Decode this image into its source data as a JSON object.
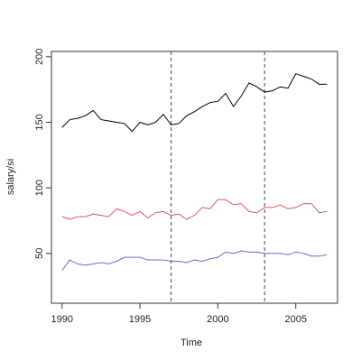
{
  "chart_data": {
    "type": "line",
    "xlabel": "Time",
    "ylabel": "salary/si",
    "x": [
      1990,
      1990.5,
      1991,
      1991.5,
      1992,
      1992.5,
      1993,
      1993.5,
      1994,
      1994.5,
      1995,
      1995.5,
      1996,
      1996.5,
      1997,
      1997.5,
      1998,
      1998.5,
      1999,
      1999.5,
      2000,
      2000.5,
      2001,
      2001.5,
      2002,
      2002.5,
      2003,
      2003.5,
      2004,
      2004.5,
      2005,
      2005.5,
      2006,
      2006.5,
      2007
    ],
    "series": [
      {
        "color": "#000000",
        "values": [
          146,
          152,
          153,
          155,
          159,
          152,
          151,
          150,
          149,
          143,
          150,
          148,
          150,
          156,
          148,
          149,
          155,
          158,
          162,
          165,
          166,
          172,
          162,
          170,
          180,
          177,
          173,
          174,
          177,
          176,
          187,
          185,
          183,
          179,
          179
        ]
      },
      {
        "color": "#DF536B",
        "values": [
          78,
          76,
          78,
          78,
          80,
          79,
          78,
          84,
          82,
          79,
          82,
          77,
          81,
          82,
          79,
          80,
          76,
          79,
          85,
          84,
          91,
          91,
          87,
          88,
          82,
          81,
          85,
          85,
          87,
          84,
          85,
          88,
          88,
          81,
          82
        ]
      },
      {
        "color": "#6B6BD6",
        "values": [
          37,
          45,
          42,
          41,
          42,
          43,
          42,
          44,
          47,
          47,
          47,
          45,
          45,
          45,
          44,
          44,
          43,
          45,
          44,
          46,
          47,
          51,
          50,
          52,
          51,
          51,
          50,
          50,
          50,
          49,
          51,
          50,
          48,
          48,
          49
        ]
      }
    ],
    "vlines": [
      1997,
      2003
    ],
    "xlim": [
      1989.32,
      2007.68
    ],
    "xticks": [
      1990,
      1995,
      2000,
      2005
    ],
    "ylim": [
      12,
      204
    ],
    "yticks": [
      50,
      100,
      150,
      200
    ]
  }
}
